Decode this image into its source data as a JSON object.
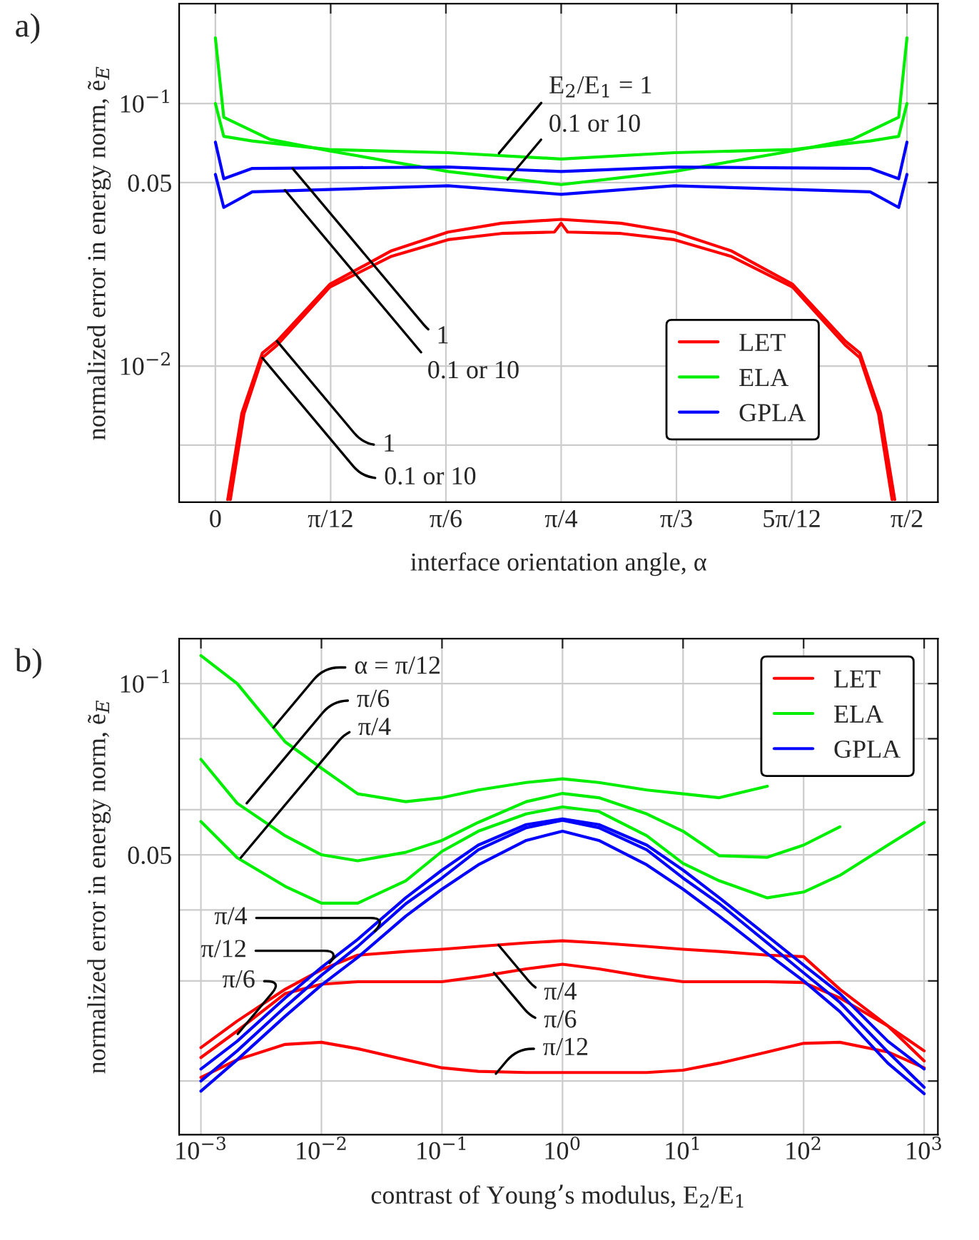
{
  "chart_data": [
    {
      "type": "line",
      "title": "a)",
      "xlabel": "interface orientation angle, α",
      "ylabel": "normalized error in energy norm, ẽ$_{E}$",
      "log": "y",
      "grid": true,
      "legend": "lower right",
      "xlim": [
        -0.0823,
        1.641
      ],
      "ylim": [
        0.00303,
        0.24
      ],
      "xticks": [
        0,
        {
          "value": 0.2618,
          "label": "π/12"
        },
        {
          "value": 0.5236,
          "label": "π/6"
        },
        {
          "value": 0.7854,
          "label": "π/4"
        },
        {
          "value": 1.0472,
          "label": "π/3"
        },
        {
          "value": 1.309,
          "label": "5π/12"
        },
        {
          "value": 1.5708,
          "label": "π/2"
        }
      ],
      "yticks": [
        {
          "value": 0.005,
          "label": null
        },
        {
          "value": 0.01,
          "label": "10$^{−2}$"
        },
        0.05,
        {
          "value": 0.1,
          "label": "10$^{−1}$"
        }
      ],
      "series": [
        {
          "name": "LET",
          "color": "#ff0000",
          "x": [
            0.028,
            0.06,
            0.1066,
            0.14,
            0.26,
            0.4,
            0.5286,
            0.65,
            0.7854,
            0.921,
            1.042,
            1.171,
            1.311,
            1.431,
            1.464,
            1.511,
            1.543
          ],
          "values": [
            0.0031,
            0.0066,
            0.0112,
            0.01245,
            0.0205,
            0.0275,
            0.0324,
            0.035,
            0.0362,
            0.035,
            0.0324,
            0.0275,
            0.0205,
            0.01245,
            0.0112,
            0.0066,
            0.0031
          ]
        },
        {
          "color": "#ff0000",
          "x": [
            0.034,
            0.065,
            0.1066,
            0.14,
            0.26,
            0.4,
            0.5286,
            0.65,
            0.77,
            0.7854,
            0.8,
            0.921,
            1.042,
            1.171,
            1.311,
            1.431,
            1.464,
            1.506,
            1.537
          ],
          "values": [
            0.0031,
            0.0066,
            0.01075,
            0.012,
            0.02,
            0.0262,
            0.0303,
            0.032,
            0.0324,
            0.035,
            0.0324,
            0.032,
            0.0303,
            0.0262,
            0.02,
            0.012,
            0.01075,
            0.0066,
            0.0031
          ]
        },
        {
          "name": "ELA",
          "color": "#00ee00",
          "x": [
            0,
            0.019,
            0.0838,
            0.259,
            0.5286,
            0.7854,
            1.042,
            1.311,
            1.487,
            1.552,
            1.5708
          ],
          "values": [
            0.1,
            0.075,
            0.072,
            0.0668,
            0.065,
            0.0615,
            0.065,
            0.0668,
            0.072,
            0.075,
            0.1
          ]
        },
        {
          "color": "#00ee00",
          "x": [
            0,
            0.019,
            0.124,
            0.259,
            0.5286,
            0.7854,
            1.042,
            1.311,
            1.447,
            1.552,
            1.5708
          ],
          "values": [
            0.178,
            0.0887,
            0.073,
            0.066,
            0.0551,
            0.0491,
            0.0551,
            0.066,
            0.073,
            0.0887,
            0.178
          ]
        },
        {
          "name": "GPLA",
          "color": "#0000ff",
          "x": [
            0,
            0.019,
            0.0838,
            0.5286,
            0.7854,
            1.042,
            1.487,
            1.552,
            1.5708
          ],
          "values": [
            0.0713,
            0.0517,
            0.0566,
            0.0573,
            0.0551,
            0.0573,
            0.0566,
            0.0517,
            0.0713
          ]
        },
        {
          "color": "#0000ff",
          "x": [
            0,
            0.019,
            0.0838,
            0.5286,
            0.7854,
            1.042,
            1.487,
            1.552,
            1.5708
          ],
          "values": [
            0.0537,
            0.0402,
            0.0461,
            0.0486,
            0.0451,
            0.0486,
            0.0461,
            0.0402,
            0.0537
          ]
        }
      ],
      "annotations": [
        {
          "text": "E$_{2}$/E$_{1}$ = 1",
          "x": 0.644,
          "y": 0.0646
        },
        {
          "text": "0.1 or 10",
          "x": 0.6635,
          "y": 0.0513
        },
        {
          "text": "1",
          "x": 0.1754,
          "y": 0.0566
        },
        {
          "text": "0.1 or 10",
          "x": 0.158,
          "y": 0.0468
        },
        {
          "text": "1",
          "x": 0.14,
          "y": 0.01245
        },
        {
          "text": "0.1 or 10",
          "x": 0.1066,
          "y": 0.01075
        }
      ]
    },
    {
      "type": "line",
      "title": "b)",
      "xlabel": "contrast of Young’s modulus, E$_{2}$/E$_{1}$",
      "ylabel": "normalized error in energy norm, ẽ$_{E}$",
      "log": "xy",
      "grid": true,
      "legend": "upper right",
      "xlim": [
        0.00066,
        1300
      ],
      "ylim": [
        0.0161,
        0.12
      ],
      "xticks": [
        {
          "value": 0.001,
          "label": "10$^{−3}$"
        },
        {
          "value": 0.01,
          "label": "10$^{−2}$"
        },
        {
          "value": 0.1,
          "label": "10$^{−1}$"
        },
        {
          "value": 1,
          "label": "10$^{0}$"
        },
        {
          "value": 10,
          "label": "10$^{1}$"
        },
        {
          "value": 100,
          "label": "10$^{2}$"
        },
        {
          "value": 1000,
          "label": "10$^{3}$"
        }
      ],
      "yticks": [
        {
          "value": 0.02,
          "label": null
        },
        {
          "value": 0.03,
          "label": null
        },
        {
          "value": 0.04,
          "label": null
        },
        0.05,
        {
          "value": 0.06,
          "label": null
        },
        {
          "value": 0.08,
          "label": null
        },
        {
          "value": 0.1,
          "label": "10$^{−1}$"
        }
      ],
      "x": [
        0.001,
        0.002,
        0.005,
        0.01,
        0.02,
        0.05,
        0.1,
        0.2,
        0.5,
        1,
        2,
        5,
        10,
        20,
        50,
        100,
        200,
        500,
        1000
      ],
      "series": [
        {
          "name": "LET",
          "color": "#ff0000",
          "values": [
            0.0229,
            0.0255,
            0.029,
            0.0314,
            0.0333,
            0.0338,
            0.0341,
            0.0345,
            0.035,
            0.0353,
            0.035,
            0.0345,
            0.0341,
            0.0338,
            0.0333,
            0.0331,
            0.029,
            0.025,
            0.0226
          ]
        },
        {
          "color": "#ff0000",
          "values": [
            0.022,
            0.0245,
            0.0285,
            0.0296,
            0.0299,
            0.0299,
            0.0299,
            0.0305,
            0.0315,
            0.0321,
            0.0315,
            0.0305,
            0.0299,
            0.0299,
            0.0299,
            0.0298,
            0.028,
            0.025,
            0.0217
          ]
        },
        {
          "color": "#ff0000",
          "values": [
            0.0203,
            0.0218,
            0.0232,
            0.0234,
            0.0228,
            0.0218,
            0.0211,
            0.0208,
            0.0207,
            0.0207,
            0.0207,
            0.0207,
            0.0209,
            0.0215,
            0.0225,
            0.0233,
            0.0234,
            0.0225,
            0.0211
          ]
        },
        {
          "name": "ELA",
          "color": "#00ee00",
          "values": [
            0.112,
            0.1,
            0.079,
            0.071,
            0.064,
            0.062,
            0.063,
            0.065,
            0.067,
            0.068,
            0.067,
            0.065,
            0.064,
            0.063,
            0.066,
            null,
            null,
            null,
            null
          ]
        },
        {
          "color": "#00ee00",
          "values": [
            0.0736,
            0.0616,
            0.054,
            0.05,
            0.0488,
            0.0505,
            0.053,
            0.057,
            0.062,
            0.0641,
            0.063,
            0.059,
            0.055,
            0.0498,
            0.0495,
            0.052,
            0.056,
            null,
            null
          ]
        },
        {
          "color": "#00ee00",
          "values": [
            0.0572,
            0.0494,
            0.044,
            0.0411,
            0.0411,
            0.045,
            0.0507,
            0.055,
            0.059,
            0.0607,
            0.0596,
            0.054,
            0.0483,
            0.045,
            0.042,
            0.043,
            0.046,
            0.052,
            0.057
          ]
        },
        {
          "name": "GPLA",
          "color": "#0000ff",
          "values": [
            0.021,
            0.0235,
            0.028,
            0.0317,
            0.0355,
            0.042,
            0.047,
            0.052,
            0.0565,
            0.0578,
            0.0565,
            0.052,
            0.047,
            0.042,
            0.036,
            0.032,
            0.0285,
            0.0235,
            0.021
          ]
        },
        {
          "color": "#0000ff",
          "values": [
            0.02,
            0.0226,
            0.027,
            0.0307,
            0.0345,
            0.041,
            0.0455,
            0.051,
            0.0558,
            0.0575,
            0.0558,
            0.051,
            0.0455,
            0.041,
            0.035,
            0.031,
            0.0275,
            0.0225,
            0.0195
          ]
        },
        {
          "color": "#0000ff",
          "values": [
            0.0192,
            0.0218,
            0.026,
            0.0295,
            0.033,
            0.039,
            0.0435,
            0.048,
            0.053,
            0.055,
            0.053,
            0.048,
            0.0435,
            0.039,
            0.0335,
            0.03,
            0.0265,
            0.0215,
            0.019
          ]
        }
      ],
      "annotations": [
        {
          "text": "α = π/12",
          "x": 0.004,
          "y": 0.0837
        },
        {
          "text": "π/6",
          "x": 0.0024,
          "y": 0.0616
        },
        {
          "text": "π/4",
          "x": 0.00214,
          "y": 0.0494
        },
        {
          "text": "π/4",
          "x": 0.0278,
          "y": 0.0367
        },
        {
          "text": "π/12",
          "x": 0.0129,
          "y": 0.0331
        },
        {
          "text": "π/6",
          "x": 0.00202,
          "y": 0.0242
        },
        {
          "text": "π/4",
          "x": 0.294,
          "y": 0.0347
        },
        {
          "text": "π/6",
          "x": 0.27,
          "y": 0.031
        },
        {
          "text": "π/12",
          "x": 0.28,
          "y": 0.0206
        }
      ]
    }
  ]
}
